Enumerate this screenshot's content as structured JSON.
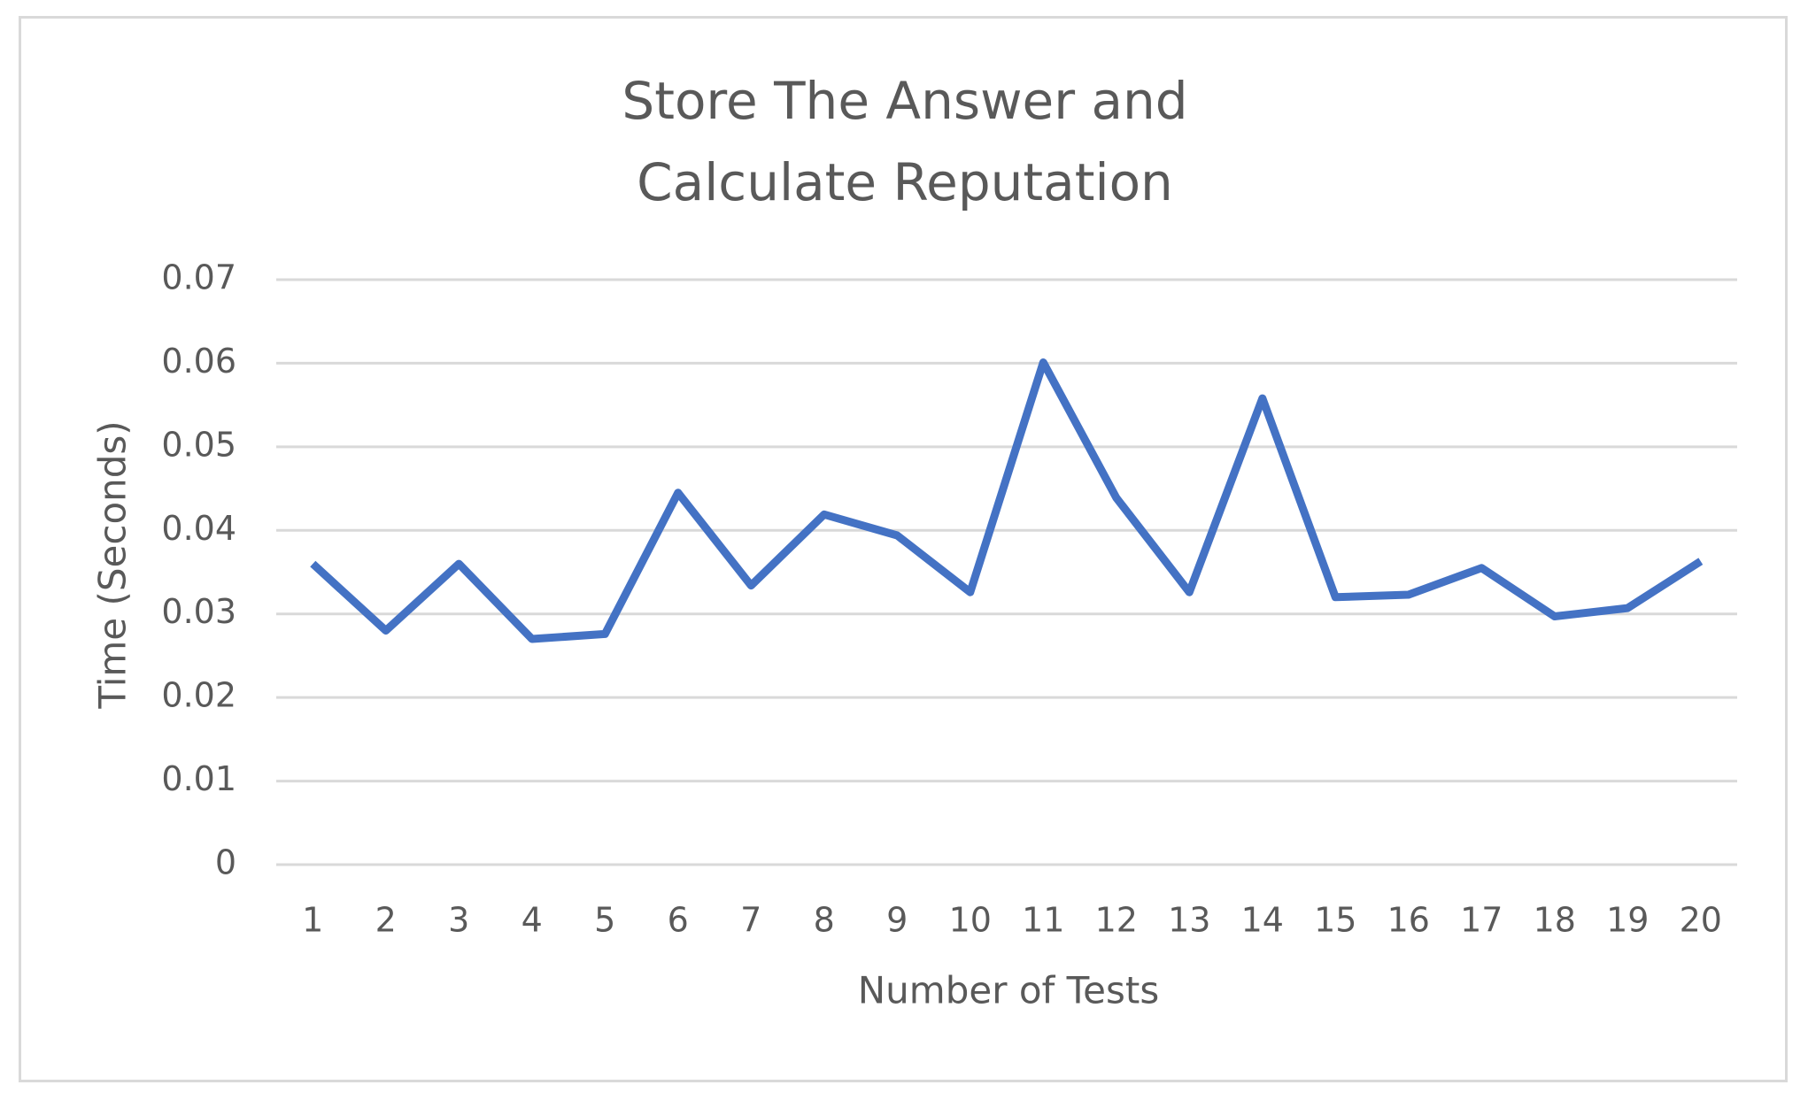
{
  "chart_data": {
    "type": "line",
    "title": "Store The Answer and Calculate Reputation",
    "x_label": "Number of Tests",
    "y_label": "Time  (Seconds)",
    "categories": [
      "1",
      "2",
      "3",
      "4",
      "5",
      "6",
      "7",
      "8",
      "9",
      "10",
      "11",
      "12",
      "13",
      "14",
      "15",
      "16",
      "17",
      "18",
      "19",
      "20"
    ],
    "values": [
      0.036,
      0.028,
      0.036,
      0.027,
      0.0276,
      0.0445,
      0.0334,
      0.0419,
      0.0394,
      0.0326,
      0.0601,
      0.0439,
      0.0326,
      0.0558,
      0.032,
      0.0323,
      0.0355,
      0.0297,
      0.0307,
      0.0363
    ],
    "color": "#4472c4",
    "ylim": [
      0,
      0.07
    ],
    "yticks": [
      0,
      0.01,
      0.02,
      0.03,
      0.04,
      0.05,
      0.06,
      0.07
    ],
    "grid": true
  }
}
